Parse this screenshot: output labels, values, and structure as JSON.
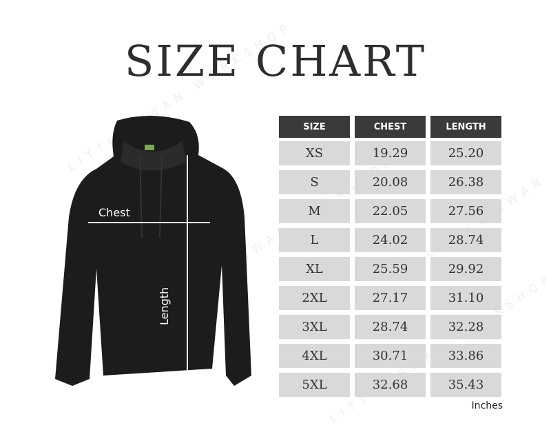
{
  "title": "SIZE CHART",
  "watermark": "LITTLE SWAN WORKSHOP",
  "diagram": {
    "chest_label": "Chest",
    "length_label": "Length"
  },
  "table": {
    "headers": [
      "SIZE",
      "CHEST",
      "LENGTH"
    ],
    "rows": [
      [
        "XS",
        "19.29",
        "25.20"
      ],
      [
        "S",
        "20.08",
        "26.38"
      ],
      [
        "M",
        "22.05",
        "27.56"
      ],
      [
        "L",
        "24.02",
        "28.74"
      ],
      [
        "XL",
        "25.59",
        "29.92"
      ],
      [
        "2XL",
        "27.17",
        "31.10"
      ],
      [
        "3XL",
        "28.74",
        "32.28"
      ],
      [
        "4XL",
        "30.71",
        "33.86"
      ],
      [
        "5XL",
        "32.68",
        "35.43"
      ]
    ],
    "units": "Inches"
  },
  "colors": {
    "header_bg": "#3a3a3a",
    "cell_bg": "#d9d9d9",
    "garment": "#1c1c1c"
  }
}
